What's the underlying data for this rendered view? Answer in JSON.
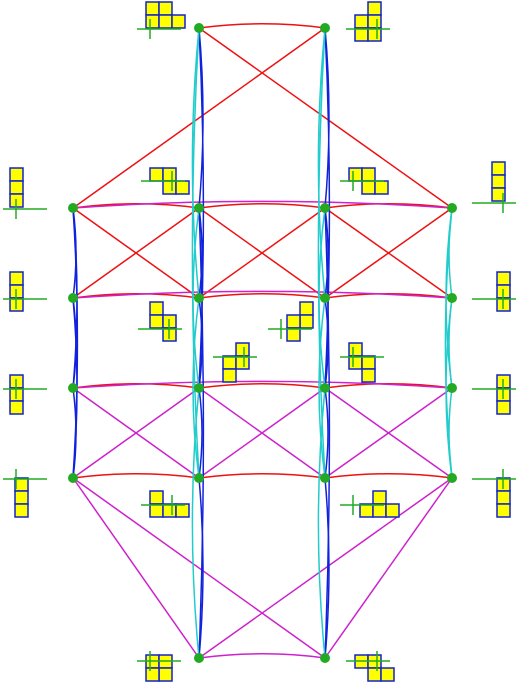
{
  "colors": {
    "background": "#ffffff",
    "node": "#22aa22",
    "edge_red": "#ee1111",
    "edge_magenta": "#cc22cc",
    "edge_blue": "#1122dd",
    "edge_cyan": "#22cccc",
    "cell_fill": "#ffff00",
    "cell_stroke": "#1122cc",
    "axis": "#22aa22"
  },
  "nodes": [
    {
      "id": "t1",
      "shape": [
        [
          0,
          0
        ],
        [
          1,
          0
        ],
        [
          0,
          1
        ],
        [
          1,
          1
        ],
        [
          2,
          1
        ]
      ],
      "axis": "left"
    },
    {
      "id": "t2",
      "shape": [
        [
          1,
          0
        ],
        [
          0,
          1
        ],
        [
          1,
          1
        ],
        [
          0,
          2
        ],
        [
          1,
          2
        ]
      ],
      "axis": "right"
    },
    {
      "id": "a1",
      "shape": [
        [
          0,
          0
        ],
        [
          0,
          1
        ],
        [
          0,
          2
        ]
      ],
      "axis": "left"
    },
    {
      "id": "a2",
      "shape": [
        [
          0,
          0
        ],
        [
          1,
          0
        ],
        [
          1,
          1
        ],
        [
          2,
          1
        ]
      ],
      "axis": "right"
    },
    {
      "id": "a3",
      "shape": [
        [
          0,
          0
        ],
        [
          1,
          0
        ],
        [
          1,
          1
        ],
        [
          2,
          1
        ]
      ],
      "axis": "left"
    },
    {
      "id": "a4",
      "shape": [
        [
          0,
          0
        ],
        [
          0,
          1
        ],
        [
          0,
          2
        ]
      ],
      "axis": "right"
    },
    {
      "id": "b1",
      "shape": [
        [
          0,
          0
        ],
        [
          0,
          1
        ],
        [
          0,
          2
        ]
      ],
      "axis": "left"
    },
    {
      "id": "b2",
      "shape": [
        [
          0,
          0
        ],
        [
          0,
          1
        ],
        [
          1,
          1
        ],
        [
          1,
          2
        ]
      ],
      "axis": "right"
    },
    {
      "id": "b3",
      "shape": [
        [
          1,
          0
        ],
        [
          1,
          1
        ],
        [
          0,
          1
        ],
        [
          0,
          2
        ]
      ],
      "axis": "left"
    },
    {
      "id": "b4",
      "shape": [
        [
          0,
          0
        ],
        [
          0,
          1
        ],
        [
          0,
          2
        ]
      ],
      "axis": "right"
    },
    {
      "id": "c1",
      "shape": [
        [
          0,
          0
        ],
        [
          0,
          1
        ],
        [
          0,
          2
        ]
      ],
      "axis": "left"
    },
    {
      "id": "c2",
      "shape": [
        [
          1,
          0
        ],
        [
          0,
          1
        ],
        [
          1,
          1
        ],
        [
          0,
          2
        ]
      ],
      "axis": "right"
    },
    {
      "id": "c3",
      "shape": [
        [
          0,
          0
        ],
        [
          0,
          1
        ],
        [
          1,
          1
        ],
        [
          1,
          2
        ]
      ],
      "axis": "left"
    },
    {
      "id": "c4",
      "shape": [
        [
          0,
          0
        ],
        [
          0,
          1
        ],
        [
          0,
          2
        ]
      ],
      "axis": "right"
    },
    {
      "id": "d1",
      "shape": [
        [
          0,
          0
        ],
        [
          0,
          1
        ],
        [
          0,
          2
        ]
      ],
      "axis": "left"
    },
    {
      "id": "d2",
      "shape": [
        [
          0,
          0
        ],
        [
          0,
          1
        ],
        [
          1,
          1
        ],
        [
          2,
          1
        ]
      ],
      "axis": "right"
    },
    {
      "id": "d3",
      "shape": [
        [
          1,
          0
        ],
        [
          0,
          1
        ],
        [
          1,
          1
        ],
        [
          2,
          1
        ]
      ],
      "axis": "left"
    },
    {
      "id": "d4",
      "shape": [
        [
          0,
          0
        ],
        [
          0,
          1
        ],
        [
          0,
          2
        ]
      ],
      "axis": "right"
    },
    {
      "id": "e1",
      "shape": [
        [
          0,
          0
        ],
        [
          1,
          0
        ],
        [
          1,
          1
        ],
        [
          0,
          1
        ]
      ],
      "axis": "left"
    },
    {
      "id": "e2",
      "shape": [
        [
          0,
          0
        ],
        [
          1,
          0
        ],
        [
          1,
          1
        ],
        [
          2,
          1
        ]
      ],
      "axis": "right"
    }
  ],
  "edges": [
    [
      "t1",
      "t2",
      "red"
    ],
    [
      "t1",
      "a4",
      "red"
    ],
    [
      "t2",
      "a1",
      "red"
    ],
    [
      "a1",
      "a2",
      "red"
    ],
    [
      "a2",
      "a3",
      "red"
    ],
    [
      "a3",
      "a4",
      "red"
    ],
    [
      "a1",
      "b2",
      "red"
    ],
    [
      "a2",
      "b1",
      "red"
    ],
    [
      "a2",
      "b3",
      "red"
    ],
    [
      "a3",
      "b2",
      "red"
    ],
    [
      "a3",
      "b4",
      "red"
    ],
    [
      "a4",
      "b3",
      "red"
    ],
    [
      "b1",
      "b2",
      "red"
    ],
    [
      "b2",
      "b3",
      "red"
    ],
    [
      "b3",
      "b4",
      "red"
    ],
    [
      "c1",
      "c2",
      "red"
    ],
    [
      "c2",
      "c3",
      "red"
    ],
    [
      "c3",
      "c4",
      "red"
    ],
    [
      "d1",
      "d2",
      "red"
    ],
    [
      "d2",
      "d3",
      "red"
    ],
    [
      "d3",
      "d4",
      "red"
    ],
    [
      "a1",
      "a4",
      "magenta"
    ],
    [
      "b1",
      "b4",
      "magenta"
    ],
    [
      "c1",
      "c4",
      "magenta"
    ],
    [
      "c1",
      "d2",
      "magenta"
    ],
    [
      "c2",
      "d1",
      "magenta"
    ],
    [
      "c2",
      "d3",
      "magenta"
    ],
    [
      "c3",
      "d2",
      "magenta"
    ],
    [
      "c3",
      "d4",
      "magenta"
    ],
    [
      "c4",
      "d3",
      "magenta"
    ],
    [
      "d1",
      "e1",
      "magenta"
    ],
    [
      "d1",
      "e2",
      "magenta"
    ],
    [
      "d4",
      "e1",
      "magenta"
    ],
    [
      "d4",
      "e2",
      "magenta"
    ],
    [
      "e1",
      "e2",
      "magenta"
    ],
    [
      "a1",
      "b1",
      "blue"
    ],
    [
      "b1",
      "c1",
      "blue"
    ],
    [
      "c1",
      "d1",
      "blue"
    ],
    [
      "a1",
      "c1",
      "blue"
    ],
    [
      "b1",
      "d1",
      "blue"
    ],
    [
      "a1",
      "d1",
      "blue"
    ],
    [
      "t1",
      "a2",
      "blue"
    ],
    [
      "a2",
      "b2",
      "blue"
    ],
    [
      "b2",
      "c2",
      "blue"
    ],
    [
      "c2",
      "d2",
      "blue"
    ],
    [
      "d2",
      "e1",
      "blue"
    ],
    [
      "t1",
      "c2",
      "blue"
    ],
    [
      "a2",
      "e1",
      "blue"
    ],
    [
      "t2",
      "a3",
      "blue"
    ],
    [
      "a3",
      "b3",
      "blue"
    ],
    [
      "b3",
      "c3",
      "blue"
    ],
    [
      "c3",
      "d3",
      "blue"
    ],
    [
      "d3",
      "e2",
      "blue"
    ],
    [
      "t2",
      "c3",
      "blue"
    ],
    [
      "a3",
      "e2",
      "blue"
    ],
    [
      "t1",
      "b2",
      "cyan"
    ],
    [
      "a2",
      "c2",
      "cyan"
    ],
    [
      "b2",
      "d2",
      "cyan"
    ],
    [
      "c2",
      "e1",
      "cyan"
    ],
    [
      "t1",
      "d2",
      "cyan"
    ],
    [
      "t2",
      "b3",
      "cyan"
    ],
    [
      "a3",
      "c3",
      "cyan"
    ],
    [
      "b3",
      "d3",
      "cyan"
    ],
    [
      "c3",
      "e2",
      "cyan"
    ],
    [
      "t2",
      "d3",
      "cyan"
    ],
    [
      "a4",
      "b4",
      "cyan"
    ],
    [
      "b4",
      "c4",
      "cyan"
    ],
    [
      "c4",
      "d4",
      "cyan"
    ],
    [
      "a4",
      "c4",
      "cyan"
    ],
    [
      "b4",
      "d4",
      "cyan"
    ],
    [
      "a4",
      "d4",
      "cyan"
    ]
  ]
}
